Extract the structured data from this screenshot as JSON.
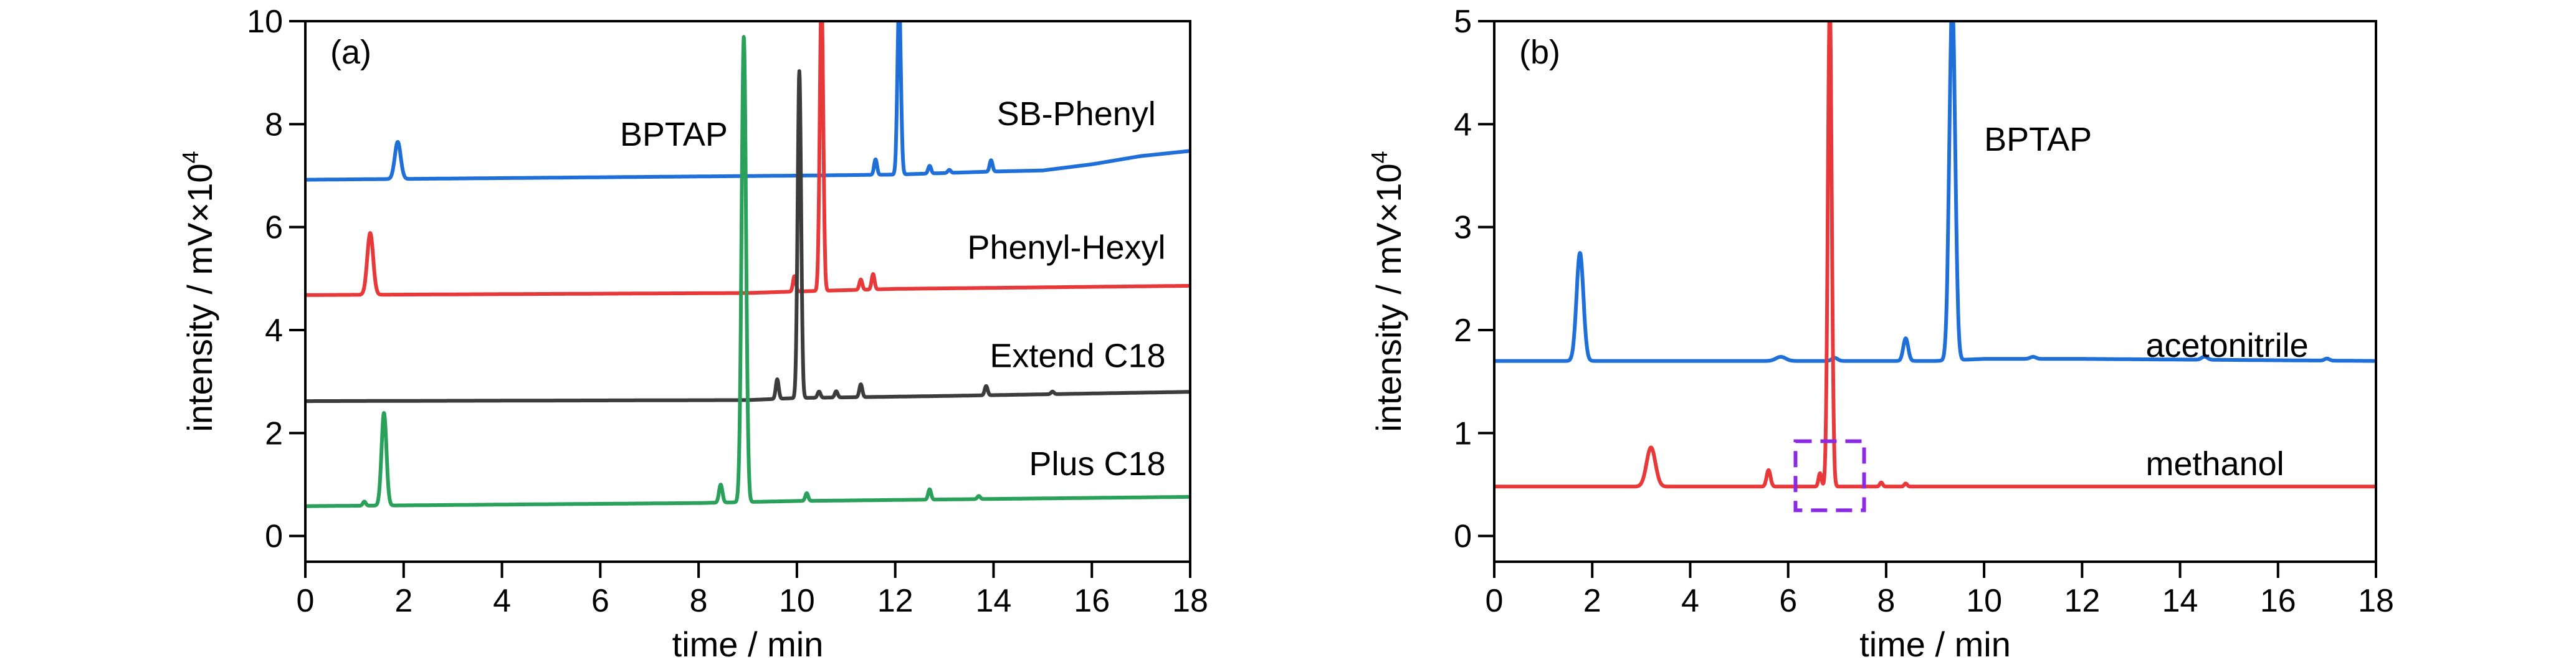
{
  "chart_data": [
    {
      "type": "line",
      "panel_label": "(a)",
      "xlabel": "time / min",
      "ylabel": "intensity / mV×10",
      "ylabel_exp": "4",
      "xlim": [
        0,
        18
      ],
      "ylim": [
        -0.5,
        10
      ],
      "xticks": [
        0,
        2,
        4,
        6,
        8,
        10,
        12,
        14,
        16,
        18
      ],
      "yticks": [
        0,
        2,
        4,
        6,
        8,
        10
      ],
      "annotations": [
        {
          "text": "BPTAP",
          "x": 6.4,
          "y": 7.8
        },
        {
          "text": "SB-Phenyl",
          "x": 17.3,
          "y": 8.2
        },
        {
          "text": "Phenyl-Hexyl",
          "x": 17.5,
          "y": 5.6
        },
        {
          "text": "Extend C18",
          "x": 17.5,
          "y": 3.5
        },
        {
          "text": "Plus C18",
          "x": 17.5,
          "y": 1.4
        }
      ],
      "series": [
        {
          "color": "#1f6fd8",
          "baseline": [
            [
              0,
              6.92
            ],
            [
              10,
              7.0
            ],
            [
              12,
              7.02
            ],
            [
              14,
              7.08
            ],
            [
              15,
              7.1
            ],
            [
              16,
              7.22
            ],
            [
              17,
              7.38
            ],
            [
              18,
              7.48
            ]
          ],
          "peaks": [
            [
              1.88,
              0.72,
              0.06
            ],
            [
              11.6,
              0.3,
              0.03
            ],
            [
              12.08,
              3.4,
              0.035
            ],
            [
              12.7,
              0.15,
              0.03
            ],
            [
              13.1,
              0.06,
              0.03
            ],
            [
              13.95,
              0.22,
              0.03
            ]
          ]
        },
        {
          "color": "#e8393a",
          "baseline": [
            [
              0,
              4.68
            ],
            [
              9,
              4.72
            ],
            [
              10,
              4.75
            ],
            [
              12,
              4.8
            ],
            [
              18,
              4.86
            ]
          ],
          "peaks": [
            [
              1.32,
              1.2,
              0.06
            ],
            [
              9.95,
              0.3,
              0.03
            ],
            [
              10.5,
              5.8,
              0.035
            ],
            [
              11.3,
              0.2,
              0.03
            ],
            [
              11.55,
              0.3,
              0.03
            ]
          ]
        },
        {
          "color": "#3c3c3c",
          "baseline": [
            [
              0,
              2.62
            ],
            [
              9,
              2.64
            ],
            [
              10,
              2.68
            ],
            [
              13,
              2.72
            ],
            [
              18,
              2.8
            ]
          ],
          "peaks": [
            [
              9.6,
              0.38,
              0.03
            ],
            [
              10.05,
              6.35,
              0.035
            ],
            [
              10.45,
              0.12,
              0.03
            ],
            [
              10.8,
              0.12,
              0.03
            ],
            [
              11.3,
              0.25,
              0.03
            ],
            [
              13.85,
              0.18,
              0.03
            ],
            [
              15.2,
              0.05,
              0.03
            ]
          ]
        },
        {
          "color": "#2aa15b",
          "baseline": [
            [
              0,
              0.58
            ],
            [
              8,
              0.64
            ],
            [
              10,
              0.68
            ],
            [
              18,
              0.76
            ]
          ],
          "peaks": [
            [
              1.2,
              0.08,
              0.03
            ],
            [
              1.6,
              1.8,
              0.05
            ],
            [
              8.45,
              0.35,
              0.035
            ],
            [
              8.92,
              9.05,
              0.045
            ],
            [
              10.2,
              0.15,
              0.03
            ],
            [
              12.7,
              0.2,
              0.03
            ],
            [
              13.7,
              0.06,
              0.03
            ]
          ]
        }
      ]
    },
    {
      "type": "line",
      "panel_label": "(b)",
      "xlabel": "time / min",
      "ylabel": "intensity / mV×10",
      "ylabel_exp": "4",
      "xlim": [
        0,
        18
      ],
      "ylim": [
        -0.25,
        5
      ],
      "xticks": [
        0,
        2,
        4,
        6,
        8,
        10,
        12,
        14,
        16,
        18
      ],
      "yticks": [
        0,
        1,
        2,
        3,
        4,
        5
      ],
      "annotations": [
        {
          "text": "BPTAP",
          "x": 10.0,
          "y": 3.85
        },
        {
          "text": "acetonitrile",
          "x": 13.3,
          "y": 1.85
        },
        {
          "text": "methanol",
          "x": 13.3,
          "y": 0.7
        }
      ],
      "highlight_box": {
        "x0": 6.15,
        "x1": 7.55,
        "y0": 0.25,
        "y1": 0.92,
        "color": "#8a2be2"
      },
      "series": [
        {
          "color": "#1f6fd8",
          "baseline": [
            [
              0,
              1.7
            ],
            [
              9,
              1.7
            ],
            [
              10,
              1.72
            ],
            [
              12,
              1.72
            ],
            [
              18,
              1.7
            ]
          ],
          "peaks": [
            [
              1.75,
              1.05,
              0.07
            ],
            [
              5.85,
              0.04,
              0.1
            ],
            [
              6.95,
              0.03,
              0.06
            ],
            [
              8.4,
              0.22,
              0.05
            ],
            [
              9.35,
              3.5,
              0.06
            ],
            [
              11.0,
              0.02,
              0.06
            ],
            [
              14.5,
              0.03,
              0.06
            ],
            [
              17.0,
              0.02,
              0.05
            ]
          ]
        },
        {
          "color": "#e8393a",
          "baseline": [
            [
              0,
              0.48
            ],
            [
              18,
              0.48
            ]
          ],
          "peaks": [
            [
              3.2,
              0.38,
              0.09
            ],
            [
              5.6,
              0.16,
              0.04
            ],
            [
              6.65,
              0.13,
              0.03
            ],
            [
              6.85,
              4.7,
              0.04
            ],
            [
              7.9,
              0.04,
              0.03
            ],
            [
              8.4,
              0.03,
              0.03
            ]
          ]
        }
      ]
    }
  ]
}
